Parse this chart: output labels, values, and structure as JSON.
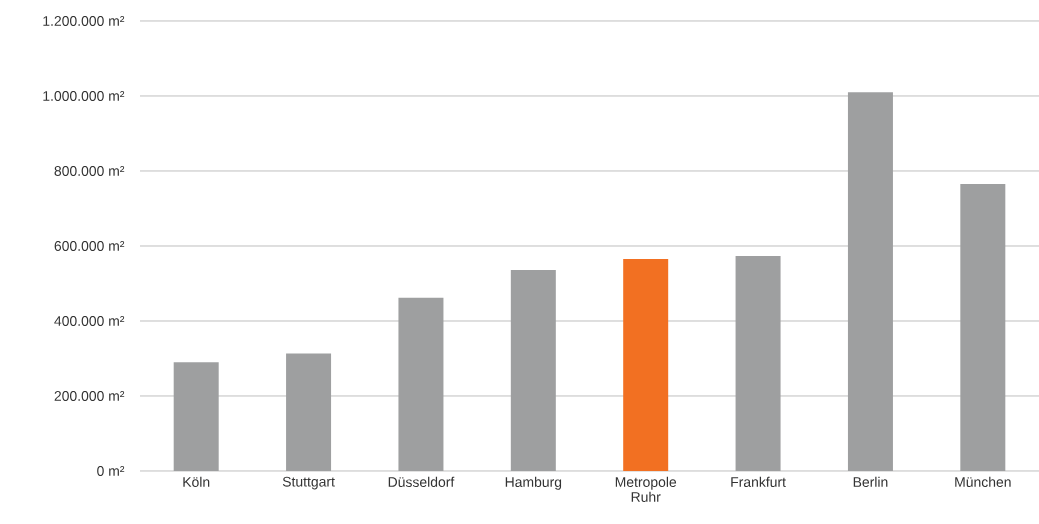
{
  "chart_data": {
    "type": "bar",
    "categories": [
      "Köln",
      "Stuttgart",
      "Düsseldorf",
      "Hamburg",
      "Metropole Ruhr",
      "Frankfurt",
      "Berlin",
      "München"
    ],
    "values": [
      290000,
      313000,
      462000,
      536000,
      565000,
      573000,
      1010000,
      765000
    ],
    "colors": [
      "#9e9fa0",
      "#9e9fa0",
      "#9e9fa0",
      "#9e9fa0",
      "#f27022",
      "#9e9fa0",
      "#9e9fa0",
      "#9e9fa0"
    ],
    "ylim": [
      0,
      1200000
    ],
    "yticks": [
      {
        "value": 0,
        "label": "0 m²"
      },
      {
        "value": 200000,
        "label": "200.000 m²"
      },
      {
        "value": 400000,
        "label": "400.000 m²"
      },
      {
        "value": 600000,
        "label": "600.000 m²"
      },
      {
        "value": 800000,
        "label": "800.000 m²"
      },
      {
        "value": 1000000,
        "label": "1.000.000 m²"
      },
      {
        "value": 1200000,
        "label": "1.200.000 m²"
      }
    ],
    "grid": "y"
  }
}
